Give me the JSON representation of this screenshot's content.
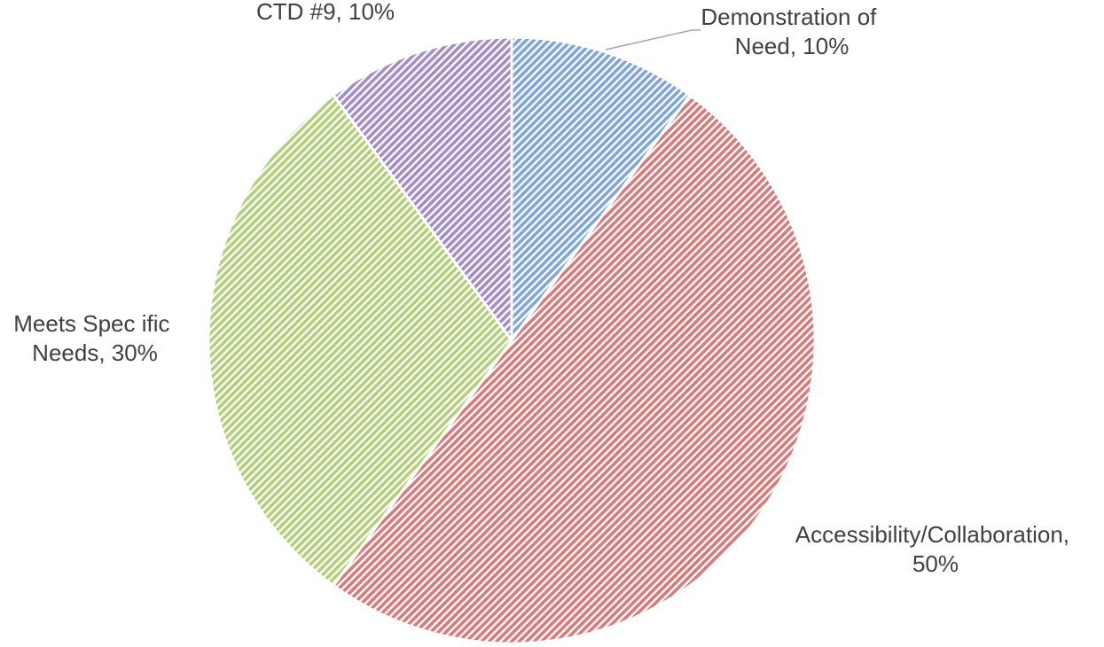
{
  "chart_data": {
    "type": "pie",
    "values": [
      10,
      50,
      30,
      10
    ],
    "value_labels": [
      "Demonstration of Need, 10%",
      "Accessibility/Collaboration, 50%",
      "Meets Spec ific Needs, 30%",
      "CTD #9, 10%"
    ],
    "colors": [
      "#7fa6da",
      "#d9797a",
      "#b3cf79",
      "#a48cc6"
    ]
  }
}
